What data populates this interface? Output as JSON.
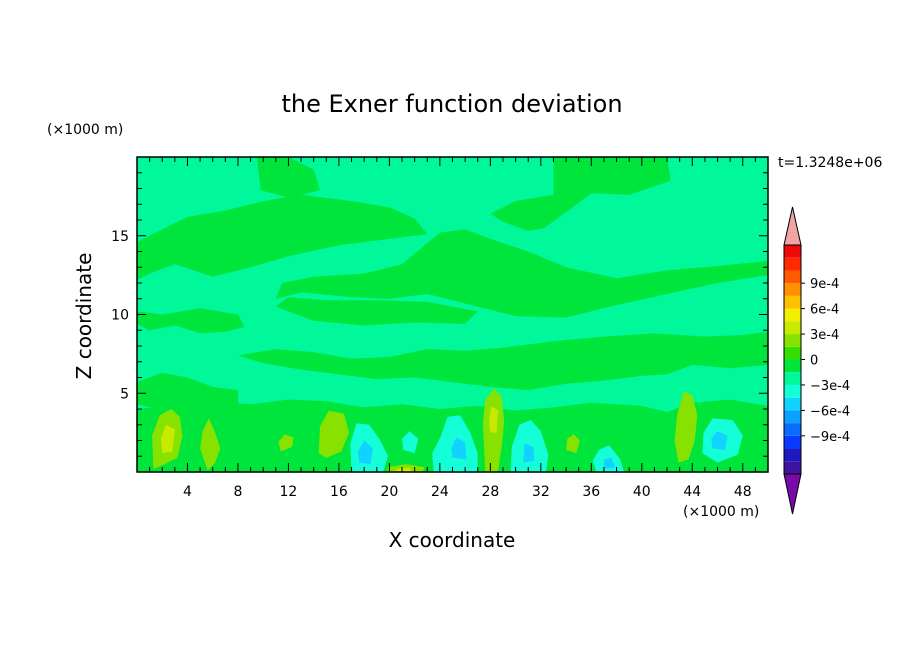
{
  "chart_data": {
    "type": "heatmap",
    "title": "the Exner function deviation",
    "xlabel": "X coordinate",
    "ylabel": "Z coordinate",
    "x_unit": "(×1000 m)",
    "y_unit": "(×1000 m)",
    "time_label": "t=1.3248e+06",
    "xlim": [
      0,
      50
    ],
    "ylim": [
      0,
      20
    ],
    "x_ticks": [
      "4",
      "8",
      "12",
      "16",
      "20",
      "24",
      "28",
      "32",
      "36",
      "40",
      "44",
      "48"
    ],
    "y_ticks": [
      "5",
      "10",
      "15"
    ],
    "colorbar": {
      "range": [
        -0.0011,
        0.0011
      ],
      "labels": [
        "9e-4",
        "6e-4",
        "3e-4",
        "0",
        "−3e-4",
        "−6e-4",
        "−9e-4"
      ],
      "colors": [
        "#7a0aa8",
        "#3f12a0",
        "#1a1ac0",
        "#0a3aff",
        "#0a6cff",
        "#0aa0ff",
        "#12d2ff",
        "#14ffd8",
        "#00f79a",
        "#00e53c",
        "#34e000",
        "#88e200",
        "#c8ea00",
        "#f2ee00",
        "#ffc000",
        "#ff9000",
        "#ff5a00",
        "#ff2a00",
        "#ee0a0a",
        "#f2a4a4"
      ]
    },
    "field_colors": {
      "background": "#00f79a",
      "zero_band": "#00e53c",
      "weak_positive": "#88e200",
      "positive": "#c8ea00",
      "negative": "#14ffd8",
      "stronger_negative": "#12d2ff"
    },
    "regions": [
      {
        "level": "zero_band",
        "pts": [
          [
            0,
            14.6
          ],
          [
            2,
            15.4
          ],
          [
            4,
            16.2
          ],
          [
            7,
            16.6
          ],
          [
            10,
            17.2
          ],
          [
            13,
            17.6
          ],
          [
            17,
            17.2
          ],
          [
            20,
            16.8
          ],
          [
            22,
            16.1
          ],
          [
            23,
            15.1
          ],
          [
            20,
            14.8
          ],
          [
            16,
            14.4
          ],
          [
            12,
            13.7
          ],
          [
            9,
            13.0
          ],
          [
            6,
            12.4
          ],
          [
            3,
            13.2
          ],
          [
            1,
            12.6
          ],
          [
            0,
            12.2
          ]
        ]
      },
      {
        "level": "zero_band",
        "pts": [
          [
            9.5,
            20
          ],
          [
            12,
            20
          ],
          [
            14,
            19.2
          ],
          [
            14.5,
            17.9
          ],
          [
            12,
            17.4
          ],
          [
            9.8,
            17.9
          ]
        ]
      },
      {
        "level": "zero_band",
        "pts": [
          [
            33,
            20
          ],
          [
            42,
            20
          ],
          [
            42.3,
            18.5
          ],
          [
            39,
            17.6
          ],
          [
            36,
            17.7
          ],
          [
            34,
            16.5
          ],
          [
            32.3,
            15.5
          ],
          [
            31,
            15.3
          ],
          [
            29,
            15.9
          ],
          [
            28,
            16.4
          ],
          [
            30,
            17.2
          ],
          [
            33,
            17.6
          ]
        ]
      },
      {
        "level": "zero_band",
        "pts": [
          [
            24,
            15.2
          ],
          [
            26,
            15.4
          ],
          [
            28,
            14.8
          ],
          [
            31,
            14.0
          ],
          [
            34,
            13.0
          ],
          [
            38,
            12.3
          ],
          [
            42,
            12.8
          ],
          [
            45,
            13.0
          ],
          [
            50,
            13.4
          ],
          [
            50,
            12.5
          ],
          [
            46,
            12.0
          ],
          [
            42,
            11.3
          ],
          [
            38,
            10.6
          ],
          [
            34,
            9.8
          ],
          [
            30,
            9.9
          ],
          [
            26,
            10.7
          ],
          [
            23,
            11.3
          ],
          [
            20,
            11.0
          ],
          [
            17,
            11.1
          ],
          [
            13,
            11.4
          ],
          [
            11,
            11.0
          ],
          [
            11.5,
            12.0
          ],
          [
            14,
            12.4
          ],
          [
            18,
            12.6
          ],
          [
            21,
            13.2
          ]
        ]
      },
      {
        "level": "zero_band",
        "pts": [
          [
            0,
            9.4
          ],
          [
            1,
            9.0
          ],
          [
            3,
            9.3
          ],
          [
            5,
            8.8
          ],
          [
            7,
            8.9
          ],
          [
            8.5,
            9.2
          ],
          [
            8,
            10.0
          ],
          [
            5,
            10.4
          ],
          [
            2,
            10.0
          ],
          [
            0,
            10.2
          ]
        ]
      },
      {
        "level": "zero_band",
        "pts": [
          [
            11,
            10.5
          ],
          [
            14,
            9.6
          ],
          [
            18,
            9.3
          ],
          [
            22,
            9.5
          ],
          [
            26,
            9.4
          ],
          [
            27,
            10.2
          ],
          [
            23,
            10.8
          ],
          [
            19,
            10.9
          ],
          [
            15,
            10.9
          ],
          [
            12,
            11.1
          ]
        ]
      },
      {
        "level": "zero_band",
        "pts": [
          [
            8,
            7.4
          ],
          [
            11,
            7.8
          ],
          [
            14,
            7.6
          ],
          [
            17,
            7.2
          ],
          [
            20,
            7.3
          ],
          [
            23,
            7.8
          ],
          [
            26,
            7.7
          ],
          [
            29,
            7.9
          ],
          [
            33,
            8.3
          ],
          [
            37,
            8.6
          ],
          [
            41,
            8.8
          ],
          [
            45,
            8.6
          ],
          [
            48,
            8.7
          ],
          [
            50,
            8.9
          ],
          [
            50,
            6.8
          ],
          [
            47,
            6.6
          ],
          [
            44,
            6.8
          ],
          [
            42,
            6.2
          ],
          [
            40,
            6.1
          ],
          [
            37,
            5.8
          ],
          [
            34,
            5.6
          ],
          [
            31,
            5.2
          ],
          [
            28,
            5.4
          ],
          [
            25,
            5.7
          ],
          [
            22,
            6.0
          ],
          [
            19,
            5.9
          ],
          [
            16,
            6.2
          ],
          [
            13,
            6.5
          ],
          [
            10,
            6.9
          ]
        ]
      },
      {
        "level": "zero_band",
        "pts": [
          [
            0,
            5.7
          ],
          [
            2,
            6.3
          ],
          [
            4,
            6.0
          ],
          [
            6,
            5.4
          ],
          [
            8,
            5.2
          ],
          [
            8,
            4.0
          ],
          [
            6,
            3.7
          ],
          [
            4,
            4.1
          ],
          [
            2,
            3.9
          ],
          [
            0,
            4.3
          ]
        ]
      },
      {
        "level": "zero_band",
        "pts": [
          [
            0,
            0
          ],
          [
            50,
            0
          ],
          [
            50,
            4.2
          ],
          [
            47,
            4.6
          ],
          [
            44,
            4.4
          ],
          [
            42,
            3.8
          ],
          [
            40,
            4.2
          ],
          [
            36,
            4.4
          ],
          [
            33,
            4.1
          ],
          [
            30,
            3.9
          ],
          [
            27,
            4.2
          ],
          [
            24,
            4.0
          ],
          [
            21,
            4.3
          ],
          [
            18,
            4.1
          ],
          [
            15,
            4.5
          ],
          [
            12,
            4.6
          ],
          [
            9,
            4.3
          ],
          [
            6,
            4.5
          ],
          [
            3,
            4.2
          ],
          [
            0,
            4.0
          ]
        ]
      },
      {
        "level": "weak_positive",
        "pts": [
          [
            1.3,
            0.2
          ],
          [
            2.2,
            0.5
          ],
          [
            3.2,
            0.9
          ],
          [
            3.6,
            2.3
          ],
          [
            3.4,
            3.5
          ],
          [
            2.7,
            4.0
          ],
          [
            1.8,
            3.6
          ],
          [
            1.2,
            2.3
          ]
        ]
      },
      {
        "level": "weak_positive",
        "pts": [
          [
            5.6,
            0.1
          ],
          [
            6.2,
            0.6
          ],
          [
            6.6,
            1.5
          ],
          [
            6.2,
            2.5
          ],
          [
            5.7,
            3.4
          ],
          [
            5.2,
            2.6
          ],
          [
            5.0,
            1.5
          ]
        ]
      },
      {
        "level": "weak_positive",
        "pts": [
          [
            14.4,
            1.2
          ],
          [
            15.0,
            0.9
          ],
          [
            16.2,
            1.3
          ],
          [
            16.8,
            2.5
          ],
          [
            16.4,
            3.7
          ],
          [
            15.2,
            3.9
          ],
          [
            14.5,
            2.9
          ]
        ]
      },
      {
        "level": "weak_positive",
        "pts": [
          [
            27.6,
            0
          ],
          [
            28.6,
            0
          ],
          [
            28.9,
            1.6
          ],
          [
            29.1,
            3.2
          ],
          [
            28.9,
            4.8
          ],
          [
            28.3,
            5.3
          ],
          [
            27.6,
            4.6
          ],
          [
            27.4,
            3.0
          ],
          [
            27.5,
            1.5
          ]
        ]
      },
      {
        "level": "weak_positive",
        "pts": [
          [
            11.4,
            1.3
          ],
          [
            12.3,
            1.6
          ],
          [
            12.4,
            2.2
          ],
          [
            11.7,
            2.4
          ],
          [
            11.2,
            1.9
          ]
        ]
      },
      {
        "level": "weak_positive",
        "pts": [
          [
            34.0,
            1.4
          ],
          [
            34.8,
            1.2
          ],
          [
            35.1,
            2.0
          ],
          [
            34.6,
            2.4
          ],
          [
            34.1,
            2.1
          ]
        ]
      },
      {
        "level": "weak_positive",
        "pts": [
          [
            42.9,
            0.6
          ],
          [
            43.7,
            0.8
          ],
          [
            44.2,
            2.0
          ],
          [
            44.4,
            3.6
          ],
          [
            44.0,
            4.9
          ],
          [
            43.3,
            5.1
          ],
          [
            42.8,
            3.6
          ],
          [
            42.6,
            2.0
          ]
        ]
      },
      {
        "level": "weak_positive",
        "pts": [
          [
            19.8,
            0
          ],
          [
            22.6,
            0
          ],
          [
            22.8,
            0.3
          ],
          [
            21.3,
            0.5
          ],
          [
            19.9,
            0.3
          ]
        ]
      },
      {
        "level": "positive",
        "pts": [
          [
            28.0,
            2.5
          ],
          [
            28.5,
            2.5
          ],
          [
            28.6,
            3.9
          ],
          [
            28.1,
            4.2
          ],
          [
            27.9,
            3.3
          ]
        ]
      },
      {
        "level": "positive",
        "pts": [
          [
            2.0,
            1.2
          ],
          [
            2.8,
            1.3
          ],
          [
            3.0,
            2.7
          ],
          [
            2.3,
            3.0
          ],
          [
            1.9,
            2.2
          ]
        ]
      },
      {
        "level": "positive",
        "pts": [
          [
            20.5,
            0
          ],
          [
            21.8,
            0
          ],
          [
            21.6,
            0.25
          ],
          [
            20.6,
            0.2
          ]
        ]
      },
      {
        "level": "negative",
        "pts": [
          [
            17.0,
            0
          ],
          [
            19.5,
            0
          ],
          [
            19.9,
            1.0
          ],
          [
            19.2,
            2.1
          ],
          [
            18.4,
            3.0
          ],
          [
            17.4,
            3.1
          ],
          [
            16.9,
            1.8
          ]
        ]
      },
      {
        "level": "negative",
        "pts": [
          [
            23.5,
            0
          ],
          [
            27.0,
            0
          ],
          [
            27.0,
            1.2
          ],
          [
            26.4,
            2.5
          ],
          [
            25.6,
            3.6
          ],
          [
            24.6,
            3.5
          ],
          [
            24.1,
            2.3
          ],
          [
            23.4,
            1.2
          ]
        ]
      },
      {
        "level": "negative",
        "pts": [
          [
            29.6,
            0
          ],
          [
            32.4,
            0
          ],
          [
            32.6,
            1.1
          ],
          [
            32.0,
            2.6
          ],
          [
            31.2,
            3.3
          ],
          [
            30.3,
            3.0
          ],
          [
            29.7,
            1.6
          ]
        ]
      },
      {
        "level": "negative",
        "pts": [
          [
            36.4,
            0
          ],
          [
            38.6,
            0
          ],
          [
            38.3,
            0.8
          ],
          [
            37.4,
            1.7
          ],
          [
            36.6,
            1.4
          ],
          [
            36.1,
            0.7
          ]
        ]
      },
      {
        "level": "negative",
        "pts": [
          [
            44.8,
            1.2
          ],
          [
            46.0,
            0.6
          ],
          [
            47.6,
            1.1
          ],
          [
            48.0,
            2.3
          ],
          [
            47.2,
            3.3
          ],
          [
            45.6,
            3.4
          ],
          [
            44.9,
            2.5
          ]
        ]
      },
      {
        "level": "negative",
        "pts": [
          [
            21.1,
            1.4
          ],
          [
            22.0,
            1.2
          ],
          [
            22.3,
            2.1
          ],
          [
            21.6,
            2.6
          ],
          [
            21.0,
            2.1
          ]
        ]
      },
      {
        "level": "stronger_negative",
        "pts": [
          [
            17.6,
            0.6
          ],
          [
            18.5,
            0.5
          ],
          [
            18.7,
            1.5
          ],
          [
            18.0,
            2.0
          ],
          [
            17.5,
            1.3
          ]
        ]
      },
      {
        "level": "stronger_negative",
        "pts": [
          [
            25.0,
            0.9
          ],
          [
            26.1,
            0.8
          ],
          [
            26.0,
            1.9
          ],
          [
            25.3,
            2.2
          ],
          [
            24.9,
            1.5
          ]
        ]
      },
      {
        "level": "stronger_negative",
        "pts": [
          [
            30.6,
            0.6
          ],
          [
            31.5,
            0.7
          ],
          [
            31.4,
            1.6
          ],
          [
            30.7,
            1.8
          ]
        ]
      },
      {
        "level": "stronger_negative",
        "pts": [
          [
            37.0,
            0.2
          ],
          [
            37.9,
            0.3
          ],
          [
            37.6,
            0.9
          ],
          [
            37.0,
            0.8
          ]
        ]
      },
      {
        "level": "stronger_negative",
        "pts": [
          [
            45.6,
            1.5
          ],
          [
            46.6,
            1.4
          ],
          [
            46.8,
            2.3
          ],
          [
            46.0,
            2.6
          ],
          [
            45.5,
            2.1
          ]
        ]
      }
    ]
  }
}
